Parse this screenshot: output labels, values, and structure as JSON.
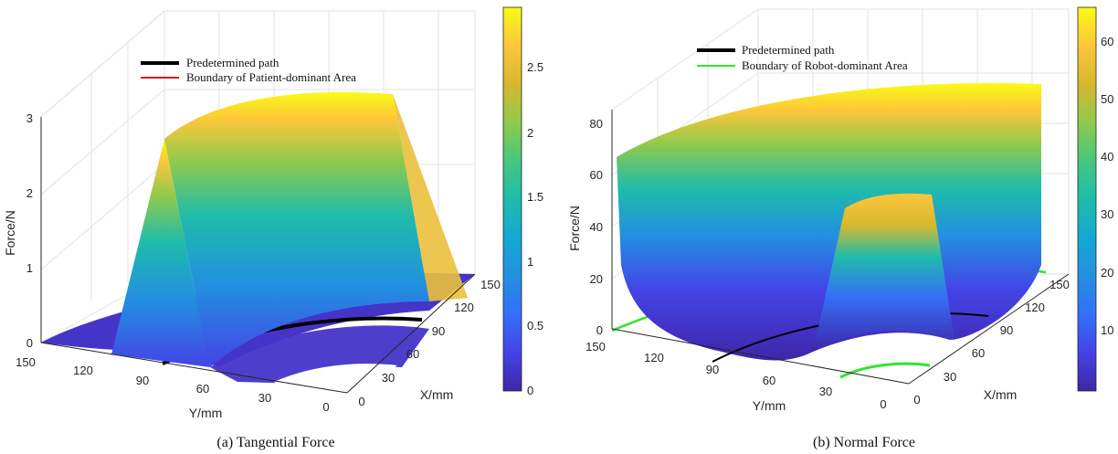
{
  "chart_data": [
    {
      "type": "surface3d",
      "caption": "(a)  Tangential Force",
      "zlabel": "Force/N",
      "xlabel": "X/mm",
      "ylabel": "Y/mm",
      "z_ticks": [
        "0",
        "1",
        "2",
        "3"
      ],
      "y_ticks": [
        "150",
        "120",
        "90",
        "60",
        "30",
        "0"
      ],
      "x_ticks": [
        "0",
        "30",
        "60",
        "90",
        "120",
        "150"
      ],
      "zlim": [
        0,
        3
      ],
      "xlim": [
        0,
        150
      ],
      "ylim": [
        0,
        150
      ],
      "legend": [
        {
          "label": "Predetermined path",
          "color": "#000000"
        },
        {
          "label": "Boundary of Patient-dominant Area",
          "color": "#d9141e"
        }
      ],
      "colorbar": {
        "ticks": [
          "2.5",
          "2",
          "1.5",
          "1",
          "0.5",
          "0"
        ],
        "min": 0,
        "max": 2.97
      },
      "surface": {
        "inner_radius_mm": 60,
        "outer_radius_mm": 120,
        "path_radius_mm": 90,
        "peak_force": 2.97,
        "outside_force": 0
      }
    },
    {
      "type": "surface3d",
      "caption": "(b)  Normal Force",
      "zlabel": "Force/N",
      "xlabel": "X/mm",
      "ylabel": "Y/mm",
      "z_ticks": [
        "0",
        "20",
        "40",
        "60",
        "80"
      ],
      "y_ticks": [
        "150",
        "120",
        "90",
        "60",
        "30",
        "0"
      ],
      "x_ticks": [
        "0",
        "30",
        "60",
        "90",
        "120",
        "150"
      ],
      "zlim": [
        0,
        80
      ],
      "xlim": [
        0,
        150
      ],
      "ylim": [
        0,
        150
      ],
      "legend": [
        {
          "label": "Predetermined path",
          "color": "#000000"
        },
        {
          "label": "Boundary of Robot-dominant Area",
          "color": "#2ee62e"
        }
      ],
      "colorbar": {
        "ticks": [
          "60",
          "50",
          "40",
          "30",
          "20",
          "10"
        ],
        "min": 0,
        "max": 66
      },
      "surface": {
        "inner_boundary_mm": 45,
        "outer_boundary_mm": 150,
        "path_radius_mm": 90,
        "inner_wall_force": 52,
        "outer_wall_force": 66
      }
    }
  ]
}
